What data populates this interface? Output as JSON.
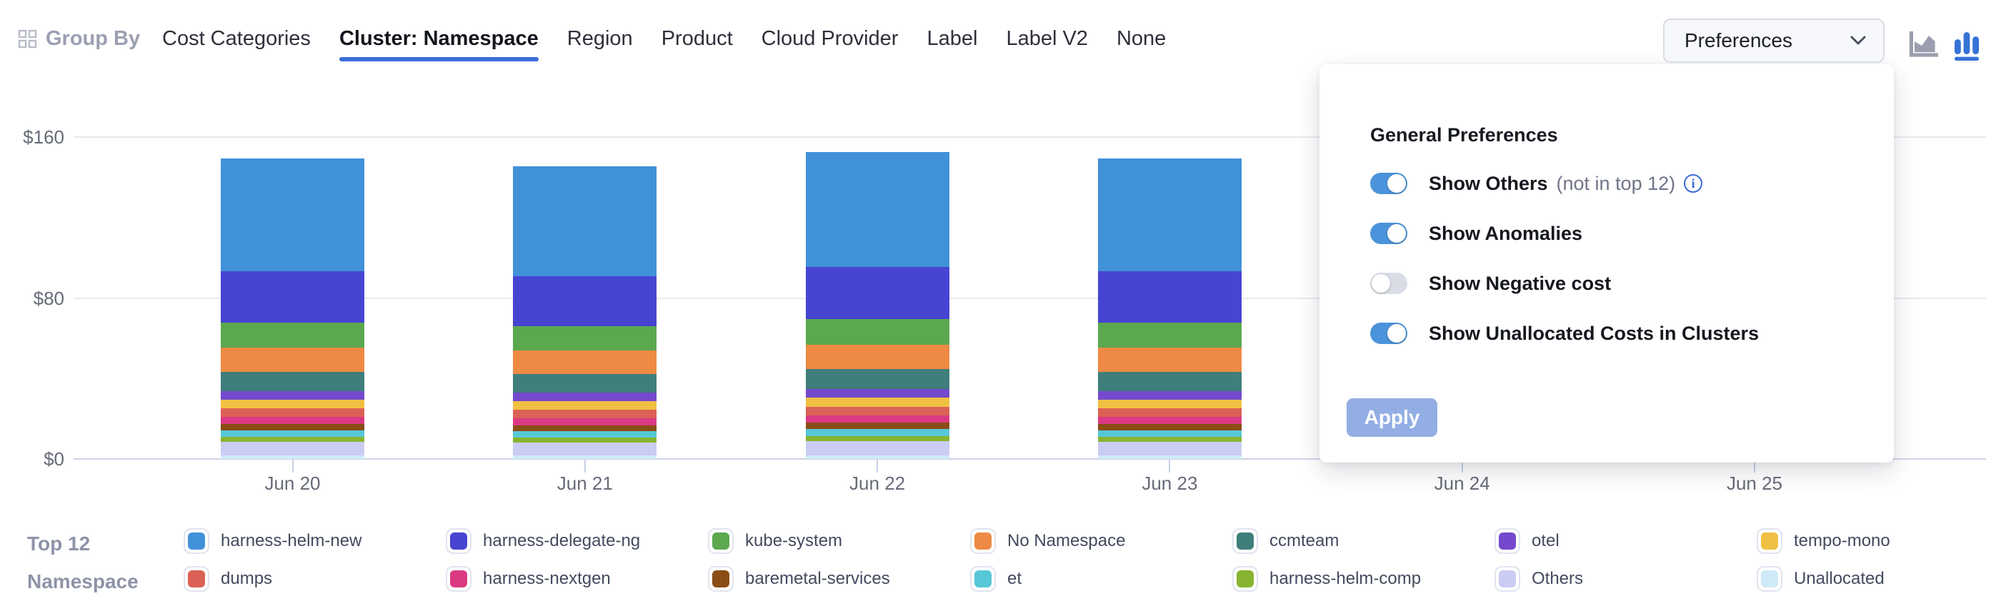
{
  "header": {
    "group_by_label": "Group By",
    "tabs": [
      {
        "label": "Cost Categories",
        "active": false
      },
      {
        "label": "Cluster: Namespace",
        "active": true
      },
      {
        "label": "Region",
        "active": false
      },
      {
        "label": "Product",
        "active": false
      },
      {
        "label": "Cloud Provider",
        "active": false
      },
      {
        "label": "Label",
        "active": false
      },
      {
        "label": "Label V2",
        "active": false
      },
      {
        "label": "None",
        "active": false
      }
    ],
    "preferences_button_label": "Preferences",
    "chart_type_toggle": {
      "area_selected": false,
      "bar_selected": true
    }
  },
  "preferences_panel": {
    "title": "General Preferences",
    "toggles": [
      {
        "label": "Show Others",
        "suffix": "(not in top 12)",
        "has_info": true,
        "on": true
      },
      {
        "label": "Show Anomalies",
        "suffix": "",
        "has_info": false,
        "on": true
      },
      {
        "label": "Show Negative cost",
        "suffix": "",
        "has_info": false,
        "on": false
      },
      {
        "label": "Show Unallocated Costs in Clusters",
        "suffix": "",
        "has_info": false,
        "on": true
      }
    ],
    "apply_label": "Apply"
  },
  "legend": {
    "title_line1": "Top 12",
    "title_line2": "Namespace",
    "items": [
      {
        "label": "harness-helm-new",
        "color": "#4191d9"
      },
      {
        "label": "dumps",
        "color": "#db6156"
      },
      {
        "label": "harness-delegate-ng",
        "color": "#4744d2"
      },
      {
        "label": "harness-nextgen",
        "color": "#db3a83"
      },
      {
        "label": "kube-system",
        "color": "#5ba84f"
      },
      {
        "label": "baremetal-services",
        "color": "#8a4d16"
      },
      {
        "label": "No Namespace",
        "color": "#ee8a43"
      },
      {
        "label": "et",
        "color": "#57c8d7"
      },
      {
        "label": "ccmteam",
        "color": "#3f7e7b"
      },
      {
        "label": "harness-helm-comp",
        "color": "#88b431"
      },
      {
        "label": "otel",
        "color": "#7449ce"
      },
      {
        "label": "Others",
        "color": "#cbccf3"
      },
      {
        "label": "tempo-mono",
        "color": "#f0c043"
      },
      {
        "label": "Unallocated",
        "color": "#cfeaf7"
      }
    ]
  },
  "chart_data": {
    "type": "bar",
    "stacked": true,
    "x": [
      "Jun 20",
      "Jun 21",
      "Jun 22",
      "Jun 23",
      "Jun 24",
      "Jun 25"
    ],
    "y_ticks": [
      {
        "label": "$0",
        "value": 0
      },
      {
        "label": "$80",
        "value": 80
      },
      {
        "label": "$160",
        "value": 160
      }
    ],
    "ylim": [
      0,
      160
    ],
    "currency": "$",
    "legend_position": "bottom",
    "grid": true,
    "series": [
      {
        "name": "harness-helm-new",
        "color": "#4191d9",
        "values": [
          56.0,
          54.5,
          57.0,
          56.0,
          0,
          0
        ]
      },
      {
        "name": "harness-delegate-ng",
        "color": "#4744d2",
        "values": [
          25.5,
          25.0,
          26.0,
          25.4,
          0,
          0
        ]
      },
      {
        "name": "kube-system",
        "color": "#5ba84f",
        "values": [
          12.4,
          12.0,
          12.6,
          12.4,
          0,
          0
        ]
      },
      {
        "name": "No Namespace",
        "color": "#ee8a43",
        "values": [
          12.1,
          11.8,
          12.3,
          12.1,
          0,
          0
        ]
      },
      {
        "name": "ccmteam",
        "color": "#3f7e7b",
        "values": [
          9.6,
          9.3,
          9.8,
          9.6,
          0,
          0
        ]
      },
      {
        "name": "otel",
        "color": "#7449ce",
        "values": [
          4.3,
          4.2,
          4.4,
          4.3,
          0,
          0
        ]
      },
      {
        "name": "tempo-mono",
        "color": "#f0c043",
        "values": [
          4.3,
          4.2,
          4.4,
          4.3,
          0,
          0
        ]
      },
      {
        "name": "dumps",
        "color": "#db6156",
        "values": [
          4.3,
          4.2,
          4.4,
          4.3,
          0,
          0
        ]
      },
      {
        "name": "harness-nextgen",
        "color": "#db3a83",
        "values": [
          3.5,
          3.4,
          3.6,
          3.5,
          0,
          0
        ]
      },
      {
        "name": "baremetal-services",
        "color": "#8a4d16",
        "values": [
          3.2,
          3.1,
          3.3,
          3.2,
          0,
          0
        ]
      },
      {
        "name": "et",
        "color": "#57c8d7",
        "values": [
          3.2,
          3.1,
          3.3,
          3.2,
          0,
          0
        ]
      },
      {
        "name": "harness-helm-comp",
        "color": "#88b431",
        "values": [
          2.5,
          2.4,
          2.6,
          2.5,
          0,
          0
        ]
      },
      {
        "name": "Others",
        "color": "#cbccf3",
        "values": [
          6.7,
          6.5,
          6.9,
          6.7,
          0,
          0
        ]
      },
      {
        "name": "Unallocated",
        "color": "#cfeaf7",
        "values": [
          1.8,
          1.7,
          1.9,
          1.8,
          0,
          0
        ]
      }
    ]
  },
  "colors": {
    "accent_underline": "#3b6cd8",
    "toggle_on": "#4b93da",
    "apply_button": "#93aee4",
    "axis_text": "#666b78",
    "gridline": "#e8e9f0",
    "axis_line": "#ccd3e6"
  }
}
